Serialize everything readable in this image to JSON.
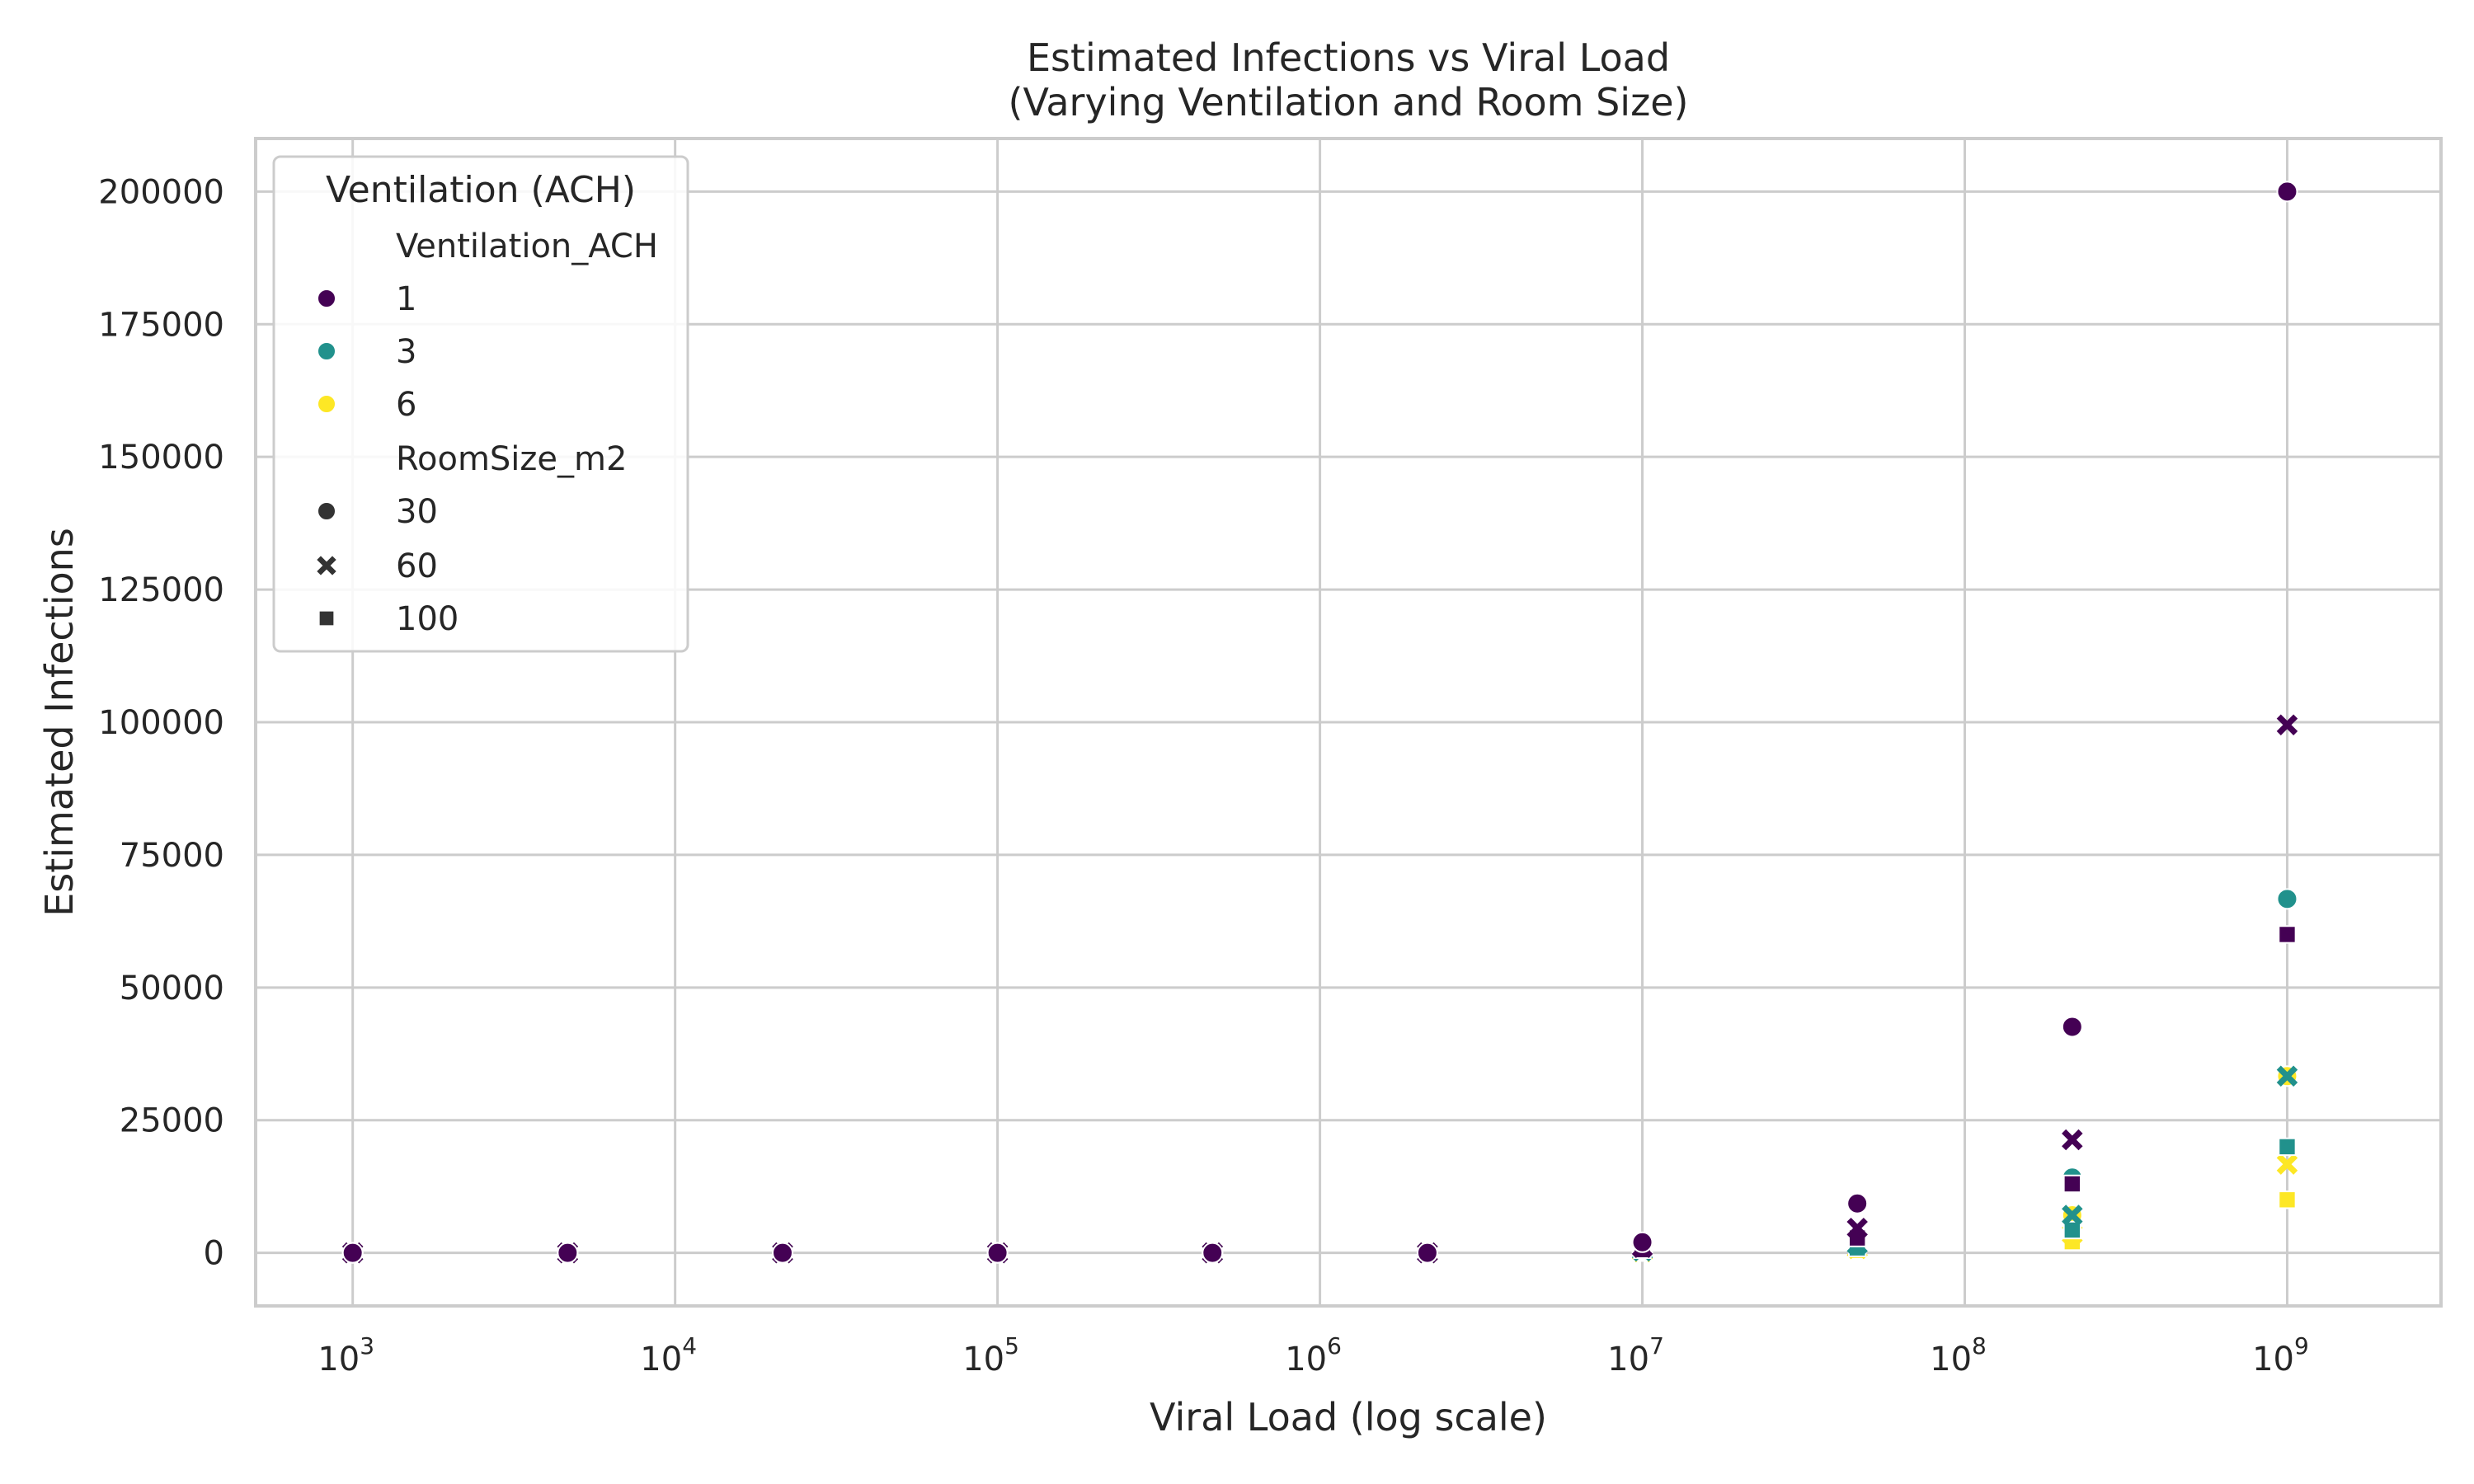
{
  "chart_data": {
    "type": "scatter",
    "title": "Estimated Infections vs Viral Load",
    "subtitle": "(Varying Ventilation and Room Size)",
    "xlabel": "Viral Load (log scale)",
    "ylabel": "Estimated Infections",
    "x_scale": "log",
    "xlim": [
      500,
      3000000000
    ],
    "ylim": [
      -10000,
      210000
    ],
    "x_ticks": [
      {
        "value": 1000,
        "base": "10",
        "exp": "3"
      },
      {
        "value": 10000,
        "base": "10",
        "exp": "4"
      },
      {
        "value": 100000,
        "base": "10",
        "exp": "5"
      },
      {
        "value": 1000000,
        "base": "10",
        "exp": "6"
      },
      {
        "value": 10000000,
        "base": "10",
        "exp": "7"
      },
      {
        "value": 100000000,
        "base": "10",
        "exp": "8"
      },
      {
        "value": 1000000000,
        "base": "10",
        "exp": "9"
      }
    ],
    "y_ticks": [
      0,
      25000,
      50000,
      75000,
      100000,
      125000,
      150000,
      175000,
      200000
    ],
    "y_tick_labels": [
      "0",
      "25000",
      "50000",
      "75000",
      "100000",
      "125000",
      "150000",
      "175000",
      "200000"
    ],
    "grid": true,
    "legend": {
      "title": "Ventilation (ACH)",
      "placement": "top-left",
      "hue_title": "Ventilation_ACH",
      "hue_entries": [
        {
          "label": "1",
          "color": "#440154"
        },
        {
          "label": "3",
          "color": "#21918c"
        },
        {
          "label": "6",
          "color": "#fde725"
        }
      ],
      "style_title": "RoomSize_m2",
      "style_entries": [
        {
          "label": "30",
          "marker": "circle"
        },
        {
          "label": "60",
          "marker": "x"
        },
        {
          "label": "100",
          "marker": "square"
        }
      ],
      "style_color": "#333333"
    },
    "x_values": [
      1000,
      4641.59,
      21544.35,
      100000,
      464158.88,
      2154434.69,
      10000000,
      46415888.34,
      215443469,
      1000000000
    ],
    "series": [
      {
        "ventilation": "1",
        "room_size": "30",
        "color": "#440154",
        "marker": "circle",
        "values": [
          0,
          0,
          0,
          0,
          0,
          0,
          2000,
          9300,
          42600,
          200000
        ]
      },
      {
        "ventilation": "1",
        "room_size": "60",
        "color": "#440154",
        "marker": "x",
        "values": [
          0,
          0,
          0,
          0,
          0,
          0,
          1000,
          4650,
          21300,
          99500
        ]
      },
      {
        "ventilation": "1",
        "room_size": "100",
        "color": "#440154",
        "marker": "square",
        "values": [
          0,
          0,
          0,
          0,
          0,
          0,
          600,
          2800,
          13000,
          60000
        ]
      },
      {
        "ventilation": "3",
        "room_size": "30",
        "color": "#21918c",
        "marker": "circle",
        "values": [
          0,
          0,
          0,
          0,
          0,
          0,
          700,
          3100,
          14200,
          66700
        ]
      },
      {
        "ventilation": "3",
        "room_size": "60",
        "color": "#21918c",
        "marker": "x",
        "values": [
          0,
          0,
          0,
          0,
          0,
          0,
          330,
          1550,
          7100,
          33300
        ]
      },
      {
        "ventilation": "3",
        "room_size": "100",
        "color": "#21918c",
        "marker": "square",
        "values": [
          0,
          0,
          0,
          0,
          0,
          0,
          200,
          930,
          4300,
          20000
        ]
      },
      {
        "ventilation": "6",
        "room_size": "30",
        "color": "#fde725",
        "marker": "circle",
        "values": [
          0,
          0,
          0,
          0,
          0,
          0,
          330,
          1550,
          7100,
          33300
        ]
      },
      {
        "ventilation": "6",
        "room_size": "60",
        "color": "#fde725",
        "marker": "x",
        "values": [
          0,
          0,
          0,
          0,
          0,
          0,
          170,
          780,
          3550,
          16700
        ]
      },
      {
        "ventilation": "6",
        "room_size": "100",
        "color": "#fde725",
        "marker": "square",
        "values": [
          0,
          0,
          0,
          0,
          0,
          0,
          100,
          470,
          2100,
          10000
        ]
      }
    ]
  }
}
